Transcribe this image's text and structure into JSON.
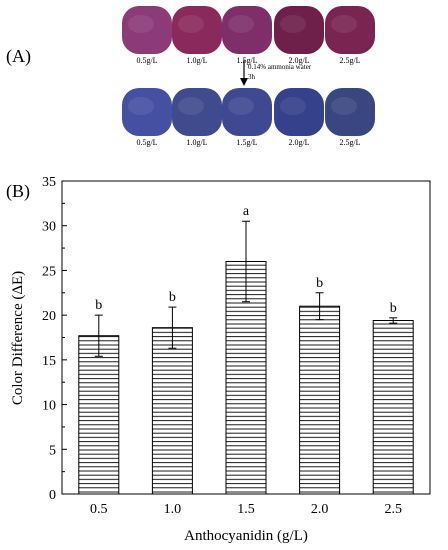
{
  "panel_a": {
    "label": "(A)",
    "before_labels": [
      "0.5g/L",
      "1.0g/L",
      "1.5g/L",
      "2.0g/L",
      "2.5g/L"
    ],
    "after_labels": [
      "0.5g/L",
      "1.0g/L",
      "1.5g/L",
      "2.0g/L",
      "2.5g/L"
    ],
    "treatment_line1": "0.14% ammonia water",
    "treatment_line2": "3h",
    "colors": {
      "before": [
        "#8c3a78",
        "#8a2a5c",
        "#7e2f6a",
        "#6e1f4a",
        "#7a2452"
      ],
      "after": [
        "#4650a2",
        "#404b8e",
        "#3f4992",
        "#35418a",
        "#3a4680"
      ]
    }
  },
  "panel_b": {
    "label": "(B)"
  },
  "chart_data": {
    "type": "bar",
    "categories": [
      "0.5",
      "1.0",
      "1.5",
      "2.0",
      "2.5"
    ],
    "values": [
      17.7,
      18.6,
      26.0,
      21.0,
      19.4
    ],
    "errors": [
      2.3,
      2.3,
      4.5,
      1.5,
      0.3
    ],
    "significance_letters": [
      "b",
      "b",
      "a",
      "b",
      "b"
    ],
    "xlabel": "Anthocyanidin (g/L)",
    "ylabel": "Color Difference (ΔE)",
    "ylim": [
      0,
      35
    ],
    "yticks": [
      "0",
      "5",
      "10",
      "15",
      "20",
      "25",
      "30",
      "35"
    ],
    "grid": false,
    "bar_fill": "horizontal hatch",
    "bar_color": "#000000"
  }
}
